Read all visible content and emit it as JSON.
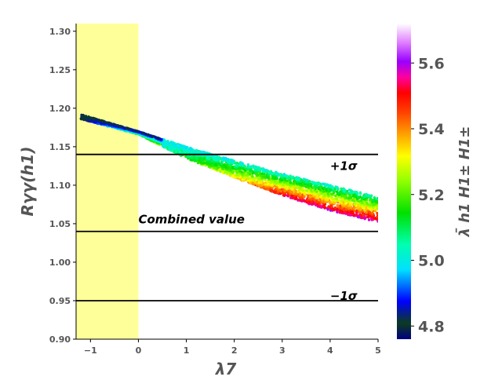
{
  "chart_data": {
    "type": "scatter",
    "xlabel": "λ7",
    "ylabel": "Rγγ(h1)",
    "colorbar_label": "λ̄ h1 H1± H1±",
    "xlim": [
      -1.3,
      5.0
    ],
    "ylim": [
      0.9,
      1.31
    ],
    "x_ticks": [
      "−1",
      "0",
      "1",
      "2",
      "3",
      "4",
      "5"
    ],
    "x_tick_values": [
      -1,
      0,
      1,
      2,
      3,
      4,
      5
    ],
    "y_ticks": [
      "0.90",
      "0.95",
      "1.00",
      "1.05",
      "1.10",
      "1.15",
      "1.20",
      "1.25",
      "1.30"
    ],
    "y_tick_values": [
      0.9,
      0.95,
      1.0,
      1.05,
      1.1,
      1.15,
      1.2,
      1.25,
      1.3
    ],
    "colorbar_range": [
      4.76,
      5.72
    ],
    "colorbar_ticks": [
      "4.8",
      "5.0",
      "5.2",
      "5.4",
      "5.6"
    ],
    "colorbar_tick_values": [
      4.8,
      5.0,
      5.2,
      5.4,
      5.6
    ],
    "colormap": "gist_ncar",
    "shaded_region": {
      "x_range": [
        -1.3,
        0.0
      ],
      "color": "#ffff99"
    },
    "horizontal_lines": [
      {
        "y": 1.14,
        "label": "+1σ"
      },
      {
        "y": 1.04,
        "label": "Combined value"
      },
      {
        "y": 0.95,
        "label": "−1σ"
      }
    ],
    "scatter_band": {
      "x_range": [
        -1.2,
        5.0
      ],
      "upper_edge": [
        [
          -1.2,
          1.192
        ],
        [
          0.0,
          1.17
        ],
        [
          1.0,
          1.15
        ],
        [
          2.0,
          1.132
        ],
        [
          3.0,
          1.115
        ],
        [
          4.0,
          1.1
        ],
        [
          5.0,
          1.085
        ]
      ],
      "lower_edge": [
        [
          -1.2,
          1.186
        ],
        [
          0.0,
          1.166
        ],
        [
          1.0,
          1.135
        ],
        [
          2.0,
          1.11
        ],
        [
          3.0,
          1.087
        ],
        [
          4.0,
          1.067
        ],
        [
          5.0,
          1.052
        ]
      ],
      "color_trend": "high λ̄ (red/orange) along lower edge, low λ̄ (cyan/blue) along upper edge and at negative λ7"
    }
  }
}
